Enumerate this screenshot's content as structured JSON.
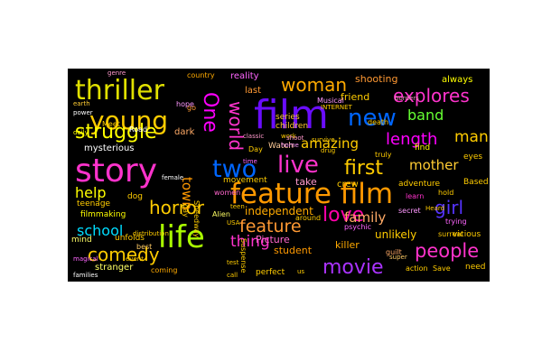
{
  "cloud": {
    "background": "#000000",
    "words": [
      {
        "text": "film",
        "color": "#6a0dff"
      },
      {
        "text": "story",
        "color": "#ff33cc"
      },
      {
        "text": "thriller",
        "color": "#e0e000"
      },
      {
        "text": "feature film",
        "color": "#ff9900"
      },
      {
        "text": "life",
        "color": "#aaff00"
      },
      {
        "text": "young",
        "color": "#ffcc00"
      },
      {
        "text": "live",
        "color": "#ff33cc"
      },
      {
        "text": "two",
        "color": "#0066ff"
      },
      {
        "text": "new",
        "color": "#0066ff"
      },
      {
        "text": "first",
        "color": "#ffcc00"
      },
      {
        "text": "love",
        "color": "#ff00aa"
      },
      {
        "text": "movie",
        "color": "#aa33ff"
      },
      {
        "text": "people",
        "color": "#ff33cc"
      },
      {
        "text": "feature",
        "color": "#ff9933"
      },
      {
        "text": "woman",
        "color": "#ffaa00"
      },
      {
        "text": "explores",
        "color": "#ff33cc"
      },
      {
        "text": "struggle",
        "color": "#ffff00"
      },
      {
        "text": "horror",
        "color": "#ffcc00"
      },
      {
        "text": "comedy",
        "color": "#ffcc00"
      },
      {
        "text": "One",
        "color": "#ff00ff"
      },
      {
        "text": "world",
        "color": "#ff33cc"
      },
      {
        "text": "length",
        "color": "#ff00ff"
      },
      {
        "text": "band",
        "color": "#66ff33"
      },
      {
        "text": "man",
        "color": "#ffcc00"
      },
      {
        "text": "girl",
        "color": "#5533ff"
      },
      {
        "text": "family",
        "color": "#ffaa66"
      },
      {
        "text": "mother",
        "color": "#ffcc33"
      },
      {
        "text": "amazing",
        "color": "#ffcc00"
      },
      {
        "text": "thing",
        "color": "#ff33cc"
      },
      {
        "text": "school",
        "color": "#00ddff"
      },
      {
        "text": "help",
        "color": "#ffff00"
      },
      {
        "text": "town",
        "color": "#ff9900"
      },
      {
        "text": "always",
        "color": "#ffff00"
      },
      {
        "text": "reality",
        "color": "#ff66ff"
      },
      {
        "text": "shooting",
        "color": "#ff9933"
      },
      {
        "text": "friend",
        "color": "#ffcc00"
      },
      {
        "text": "independent",
        "color": "#ffaa00"
      },
      {
        "text": "Picture",
        "color": "#ff66cc"
      },
      {
        "text": "unlikely",
        "color": "#ffcc00"
      },
      {
        "text": "student",
        "color": "#ff9900"
      },
      {
        "text": "killer",
        "color": "#ffaa00"
      },
      {
        "text": "mysterious",
        "color": "#ffffff"
      },
      {
        "text": "dark",
        "color": "#ffaa66"
      },
      {
        "text": "take",
        "color": "#ff99cc"
      },
      {
        "text": "crew",
        "color": "#ffcc00"
      },
      {
        "text": "series",
        "color": "#ffcc33"
      },
      {
        "text": "children",
        "color": "#ffcc33"
      },
      {
        "text": "last",
        "color": "#ff9933"
      },
      {
        "text": "Watch",
        "color": "#ffcc99"
      },
      {
        "text": "stranger",
        "color": "#ffff66"
      },
      {
        "text": "filmmaking",
        "color": "#ffff00"
      },
      {
        "text": "unfolds",
        "color": "#ffcc00"
      },
      {
        "text": "teenage",
        "color": "#ffcc00"
      },
      {
        "text": "mind",
        "color": "#ffff66"
      },
      {
        "text": "dog",
        "color": "#ffcc00"
      },
      {
        "text": "movement",
        "color": "#ffcc00"
      },
      {
        "text": "women",
        "color": "#ff66cc"
      },
      {
        "text": "Alien",
        "color": "#ffff66"
      },
      {
        "text": "best",
        "color": "#ffcc66"
      },
      {
        "text": "coming",
        "color": "#ffaa00"
      },
      {
        "text": "perfect",
        "color": "#ffcc00"
      },
      {
        "text": "around",
        "color": "#ffcc00"
      },
      {
        "text": "psychic",
        "color": "#ff66ff"
      },
      {
        "text": "trying",
        "color": "#ff66ff"
      },
      {
        "text": "secret",
        "color": "#ff99ff"
      },
      {
        "text": "surreal",
        "color": "#ffcc00"
      },
      {
        "text": "guilt",
        "color": "#ffaa66"
      },
      {
        "text": "adventure",
        "color": "#ffcc00"
      },
      {
        "text": "Based",
        "color": "#ffcc00"
      },
      {
        "text": "learn",
        "color": "#ff33cc"
      },
      {
        "text": "hold",
        "color": "#ffcc00"
      },
      {
        "text": "eyes",
        "color": "#ffcc00"
      },
      {
        "text": "find",
        "color": "#ffff00"
      },
      {
        "text": "vicious",
        "color": "#ffcc00"
      },
      {
        "text": "need",
        "color": "#ffcc00"
      },
      {
        "text": "action",
        "color": "#ffcc00"
      },
      {
        "text": "Save",
        "color": "#ffcc00"
      },
      {
        "text": "super",
        "color": "#ffcc66"
      },
      {
        "text": "death",
        "color": "#ffcc00"
      },
      {
        "text": "hope",
        "color": "#ff99ff"
      },
      {
        "text": "go",
        "color": "#ff9933"
      },
      {
        "text": "earth",
        "color": "#ffcc33"
      },
      {
        "text": "power",
        "color": "#ffffff"
      },
      {
        "text": "country",
        "color": "#ffaa00"
      },
      {
        "text": "genre",
        "color": "#ff99cc"
      },
      {
        "text": "Road",
        "color": "#ffffff"
      },
      {
        "text": "Meet",
        "color": "#ffcc00"
      },
      {
        "text": "Day",
        "color": "#ffcc00"
      },
      {
        "text": "time",
        "color": "#ff66ff"
      },
      {
        "text": "work",
        "color": "#ffcc00"
      },
      {
        "text": "home",
        "color": "#ff99ff"
      },
      {
        "text": "drug",
        "color": "#ffcc00"
      },
      {
        "text": "truly",
        "color": "#ffcc00"
      },
      {
        "text": "survive",
        "color": "#ffcc00"
      },
      {
        "text": "Musical",
        "color": "#ff99ff"
      },
      {
        "text": "INTERNET",
        "color": "#ffcc00"
      },
      {
        "text": "classic",
        "color": "#ff99cc"
      },
      {
        "text": "Speedway",
        "color": "#ffcc00"
      },
      {
        "text": "USA",
        "color": "#ffcc00"
      },
      {
        "text": "gay",
        "color": "#ffcc00"
      },
      {
        "text": "Heard",
        "color": "#ffcc00"
      },
      {
        "text": "magical",
        "color": "#ff66ff"
      },
      {
        "text": "families",
        "color": "#ffffff"
      },
      {
        "text": "event",
        "color": "#ffcc00"
      },
      {
        "text": "distribution",
        "color": "#ffcc00"
      },
      {
        "text": "Suspense",
        "color": "#ffcc00"
      },
      {
        "text": "female",
        "color": "#ffffff"
      },
      {
        "text": "daily",
        "color": "#ffff00"
      },
      {
        "text": "borders",
        "color": "#ff99cc"
      },
      {
        "text": "call",
        "color": "#ffcc00"
      },
      {
        "text": "test",
        "color": "#ffcc00"
      },
      {
        "text": "teen",
        "color": "#ffcc00"
      },
      {
        "text": "us",
        "color": "#ffcc00"
      },
      {
        "text": "shoot",
        "color": "#ff99cc"
      }
    ]
  }
}
